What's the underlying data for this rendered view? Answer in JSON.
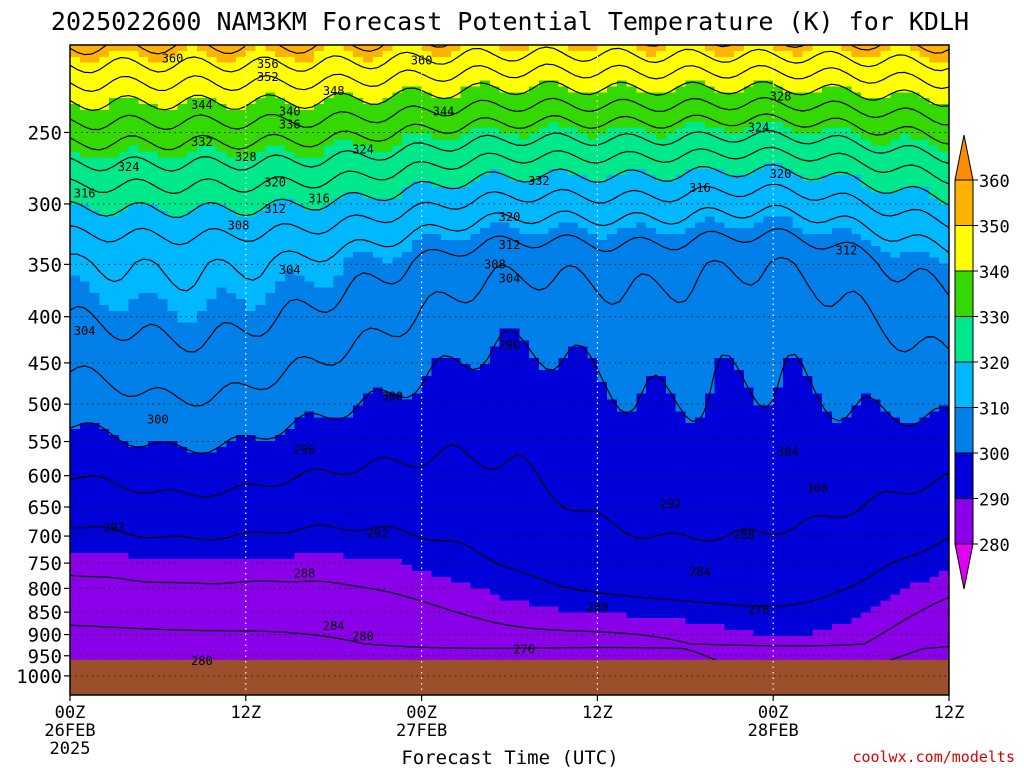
{
  "chart_data": {
    "type": "contour",
    "title": "2025022600 NAM3KM Forecast Potential Temperature (K) for KDLH",
    "xlabel": "Forecast Time (UTC)",
    "ylabel": "",
    "credit": "coolwx.com/modelts",
    "x_range_hours": [
      0,
      60
    ],
    "x_ticks": [
      {
        "hour": 0,
        "labels": [
          "00Z",
          "26FEB",
          "2025"
        ]
      },
      {
        "hour": 12,
        "labels": [
          "12Z"
        ]
      },
      {
        "hour": 24,
        "labels": [
          "00Z",
          "27FEB"
        ]
      },
      {
        "hour": 36,
        "labels": [
          "12Z"
        ]
      },
      {
        "hour": 48,
        "labels": [
          "00Z",
          "28FEB"
        ]
      },
      {
        "hour": 60,
        "labels": [
          "12Z"
        ]
      }
    ],
    "y_axis": {
      "unit": "hPa",
      "scale": "log-pressure",
      "range": [
        1050,
        200
      ],
      "ticks": [
        250,
        300,
        350,
        400,
        450,
        500,
        550,
        600,
        650,
        700,
        750,
        800,
        850,
        900,
        950,
        1000
      ]
    },
    "grid": true,
    "legend": {
      "placement": "right",
      "levels": [
        360,
        350,
        340,
        330,
        320,
        310,
        300,
        290,
        280
      ],
      "bands": [
        {
          "from": 360,
          "color": "#ff8c00"
        },
        {
          "from": 350,
          "color": "#ffb300"
        },
        {
          "from": 340,
          "color": "#ffff00"
        },
        {
          "from": 330,
          "color": "#33d900"
        },
        {
          "from": 320,
          "color": "#00e88c"
        },
        {
          "from": 310,
          "color": "#00b8ff"
        },
        {
          "from": 300,
          "color": "#0080e8"
        },
        {
          "from": 290,
          "color": "#0000d9"
        },
        {
          "from": 280,
          "color": "#8a00e8"
        },
        {
          "from": 0,
          "color": "#e300f0"
        }
      ]
    },
    "contour_interval_K": 4,
    "ground_color": "#9b4f2b",
    "ground_pressure_hPa": 960,
    "contour_labels": [
      {
        "t": 7,
        "p": 207,
        "v": "360"
      },
      {
        "t": 13.5,
        "p": 210,
        "v": "356"
      },
      {
        "t": 13.5,
        "p": 217,
        "v": "352"
      },
      {
        "t": 18,
        "p": 225,
        "v": "348"
      },
      {
        "t": 24,
        "p": 208,
        "v": "360"
      },
      {
        "t": 9,
        "p": 233,
        "v": "344"
      },
      {
        "t": 15,
        "p": 237,
        "v": "340"
      },
      {
        "t": 15,
        "p": 245,
        "v": "336"
      },
      {
        "t": 25.5,
        "p": 237,
        "v": "344"
      },
      {
        "t": 9,
        "p": 256,
        "v": "332"
      },
      {
        "t": 12,
        "p": 266,
        "v": "328"
      },
      {
        "t": 4,
        "p": 273,
        "v": "324"
      },
      {
        "t": 20,
        "p": 261,
        "v": "324"
      },
      {
        "t": 14,
        "p": 284,
        "v": "320"
      },
      {
        "t": 32,
        "p": 283,
        "v": "332"
      },
      {
        "t": 1,
        "p": 292,
        "v": "316"
      },
      {
        "t": 17,
        "p": 296,
        "v": "316"
      },
      {
        "t": 14,
        "p": 304,
        "v": "312"
      },
      {
        "t": 11.5,
        "p": 317,
        "v": "308"
      },
      {
        "t": 30,
        "p": 310,
        "v": "320"
      },
      {
        "t": 30,
        "p": 333,
        "v": "312"
      },
      {
        "t": 29,
        "p": 350,
        "v": "308"
      },
      {
        "t": 30,
        "p": 363,
        "v": "304"
      },
      {
        "t": 15,
        "p": 355,
        "v": "304"
      },
      {
        "t": 1,
        "p": 415,
        "v": "304"
      },
      {
        "t": 43,
        "p": 288,
        "v": "316"
      },
      {
        "t": 47,
        "p": 247,
        "v": "324"
      },
      {
        "t": 48.5,
        "p": 228,
        "v": "328"
      },
      {
        "t": 48.5,
        "p": 278,
        "v": "320"
      },
      {
        "t": 53,
        "p": 338,
        "v": "312"
      },
      {
        "t": 30,
        "p": 430,
        "v": "296"
      },
      {
        "t": 22,
        "p": 490,
        "v": "300"
      },
      {
        "t": 6,
        "p": 520,
        "v": "300"
      },
      {
        "t": 16,
        "p": 562,
        "v": "296"
      },
      {
        "t": 49,
        "p": 565,
        "v": "304"
      },
      {
        "t": 51,
        "p": 620,
        "v": "300"
      },
      {
        "t": 41,
        "p": 645,
        "v": "292"
      },
      {
        "t": 3,
        "p": 685,
        "v": "292"
      },
      {
        "t": 21,
        "p": 695,
        "v": "292"
      },
      {
        "t": 46,
        "p": 698,
        "v": "288"
      },
      {
        "t": 16,
        "p": 770,
        "v": "288"
      },
      {
        "t": 43,
        "p": 767,
        "v": "284"
      },
      {
        "t": 36,
        "p": 840,
        "v": "280"
      },
      {
        "t": 47,
        "p": 845,
        "v": "276"
      },
      {
        "t": 18,
        "p": 880,
        "v": "284"
      },
      {
        "t": 20,
        "p": 905,
        "v": "280"
      },
      {
        "t": 31,
        "p": 935,
        "v": "276"
      },
      {
        "t": 9,
        "p": 963,
        "v": "280"
      }
    ]
  }
}
